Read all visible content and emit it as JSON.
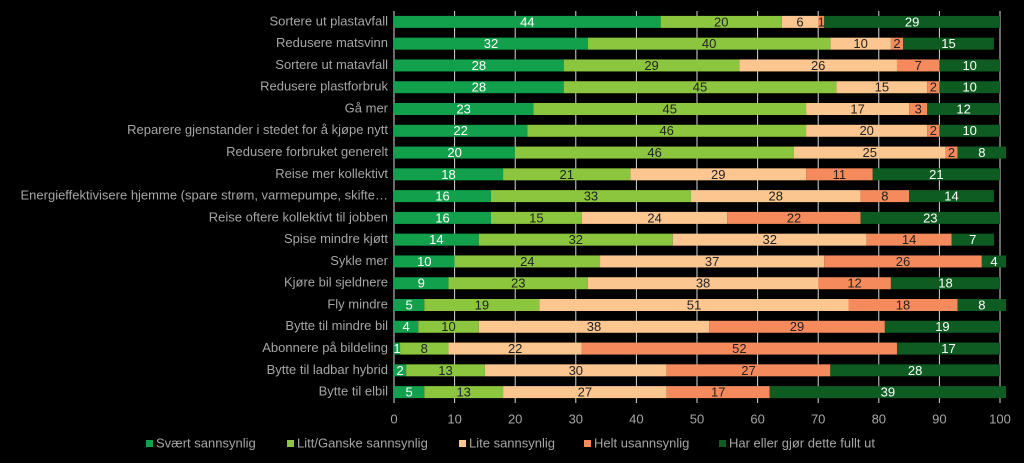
{
  "chart_data": {
    "type": "stacked-bar-horizontal",
    "categories": [
      "Sortere ut plastavfall",
      "Redusere matsvinn",
      "Sortere ut matavfall",
      "Redusere plastforbruk",
      "Gå mer",
      "Reparere gjenstander i stedet for å kjøpe nytt",
      "Redusere forbruket generelt",
      "Reise mer kollektivt",
      "Energieffektivisere hjemme (spare strøm, varmepumpe, skifte…",
      "Reise oftere kollektivt til jobben",
      "Spise mindre kjøtt",
      "Sykle mer",
      "Kjøre bil sjeldnere",
      "Fly mindre",
      "Bytte til mindre bil",
      "Abonnere på bildeling",
      "Bytte til ladbar hybrid",
      "Bytte til elbil"
    ],
    "series": [
      {
        "name": "Svært sannsynlig",
        "color": "#12a04c",
        "values": [
          44,
          32,
          28,
          28,
          23,
          22,
          20,
          18,
          16,
          16,
          14,
          10,
          9,
          5,
          4,
          1,
          2,
          5
        ]
      },
      {
        "name": "Litt/Ganske sannsynlig",
        "color": "#8cc63f",
        "values": [
          20,
          40,
          29,
          45,
          45,
          46,
          46,
          21,
          33,
          15,
          32,
          24,
          23,
          19,
          10,
          8,
          13,
          13
        ]
      },
      {
        "name": "Lite sannsynlig",
        "color": "#fbc690",
        "values": [
          6,
          10,
          26,
          15,
          17,
          20,
          25,
          29,
          28,
          24,
          32,
          37,
          38,
          51,
          38,
          22,
          30,
          27
        ]
      },
      {
        "name": "Helt usannsynlig",
        "color": "#f58b5c",
        "values": [
          1,
          2,
          7,
          2,
          3,
          2,
          2,
          11,
          8,
          22,
          14,
          26,
          12,
          18,
          29,
          52,
          27,
          17
        ]
      },
      {
        "name": "Har eller gjør dette fullt ut",
        "color": "#0e5c22",
        "values": [
          29,
          15,
          10,
          10,
          12,
          10,
          8,
          21,
          14,
          23,
          7,
          4,
          18,
          8,
          19,
          17,
          28,
          39
        ]
      }
    ],
    "xlim": [
      0,
      100
    ],
    "xticks": [
      0,
      10,
      20,
      30,
      40,
      50,
      60,
      70,
      80,
      90,
      100
    ],
    "grid": true,
    "legend": "bottom"
  }
}
